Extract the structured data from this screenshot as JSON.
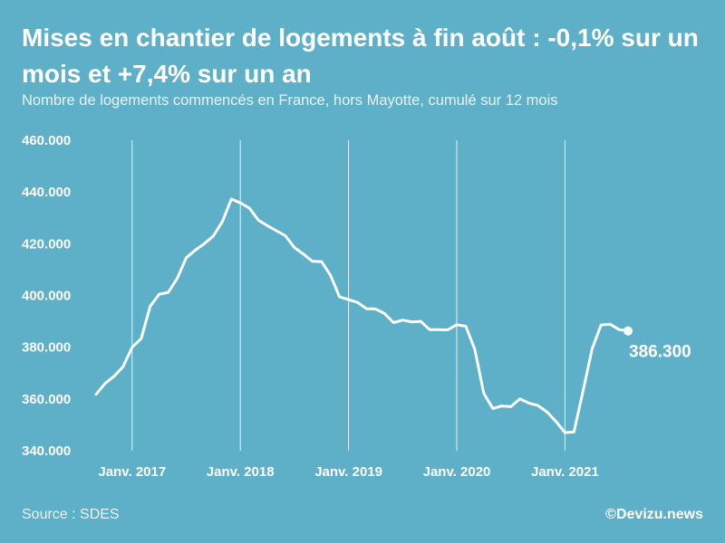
{
  "chart_data": {
    "type": "line",
    "title": "Mises en chantier de logements à fin août : -0,1% sur un mois et +7,4% sur un an",
    "subtitle": "Nombre de logements commencés en France, hors Mayotte, cumulé sur 12 mois",
    "xlabel": "",
    "ylabel": "",
    "ylim": [
      340000,
      460000
    ],
    "yticks": [
      340000,
      360000,
      380000,
      400000,
      420000,
      440000,
      460000
    ],
    "ytick_labels": [
      "340.000",
      "360.000",
      "380.000",
      "400.000",
      "420.000",
      "440.000",
      "460.000"
    ],
    "xticks": [
      {
        "label": "Janv. 2017",
        "index": 4
      },
      {
        "label": "Janv. 2018",
        "index": 16
      },
      {
        "label": "Janv. 2019",
        "index": 28
      },
      {
        "label": "Janv. 2020",
        "index": 40
      },
      {
        "label": "Janv. 2021",
        "index": 52
      }
    ],
    "grid": "vertical",
    "series": [
      {
        "color": "#ffffff",
        "start": "2016-09",
        "end": "2021-08",
        "values": [
          361800,
          366000,
          368800,
          372500,
          380000,
          383300,
          395800,
          400500,
          401200,
          406600,
          414600,
          417500,
          420000,
          423000,
          428500,
          437300,
          435800,
          433800,
          429100,
          427000,
          425000,
          423100,
          418500,
          416000,
          413200,
          413100,
          407800,
          399500,
          398400,
          397300,
          394900,
          394800,
          393000,
          389500,
          390500,
          389800,
          390000,
          386800,
          386800,
          386700,
          388700,
          388100,
          379200,
          362200,
          356300,
          357300,
          357000,
          360000,
          358400,
          357500,
          355000,
          351300,
          347000,
          347200,
          363000,
          379300,
          388600,
          388900,
          386800,
          386300
        ]
      }
    ],
    "last_value_label": "386.300"
  },
  "footer": {
    "source": "Source : SDES",
    "credit": "©Devizu.news"
  }
}
